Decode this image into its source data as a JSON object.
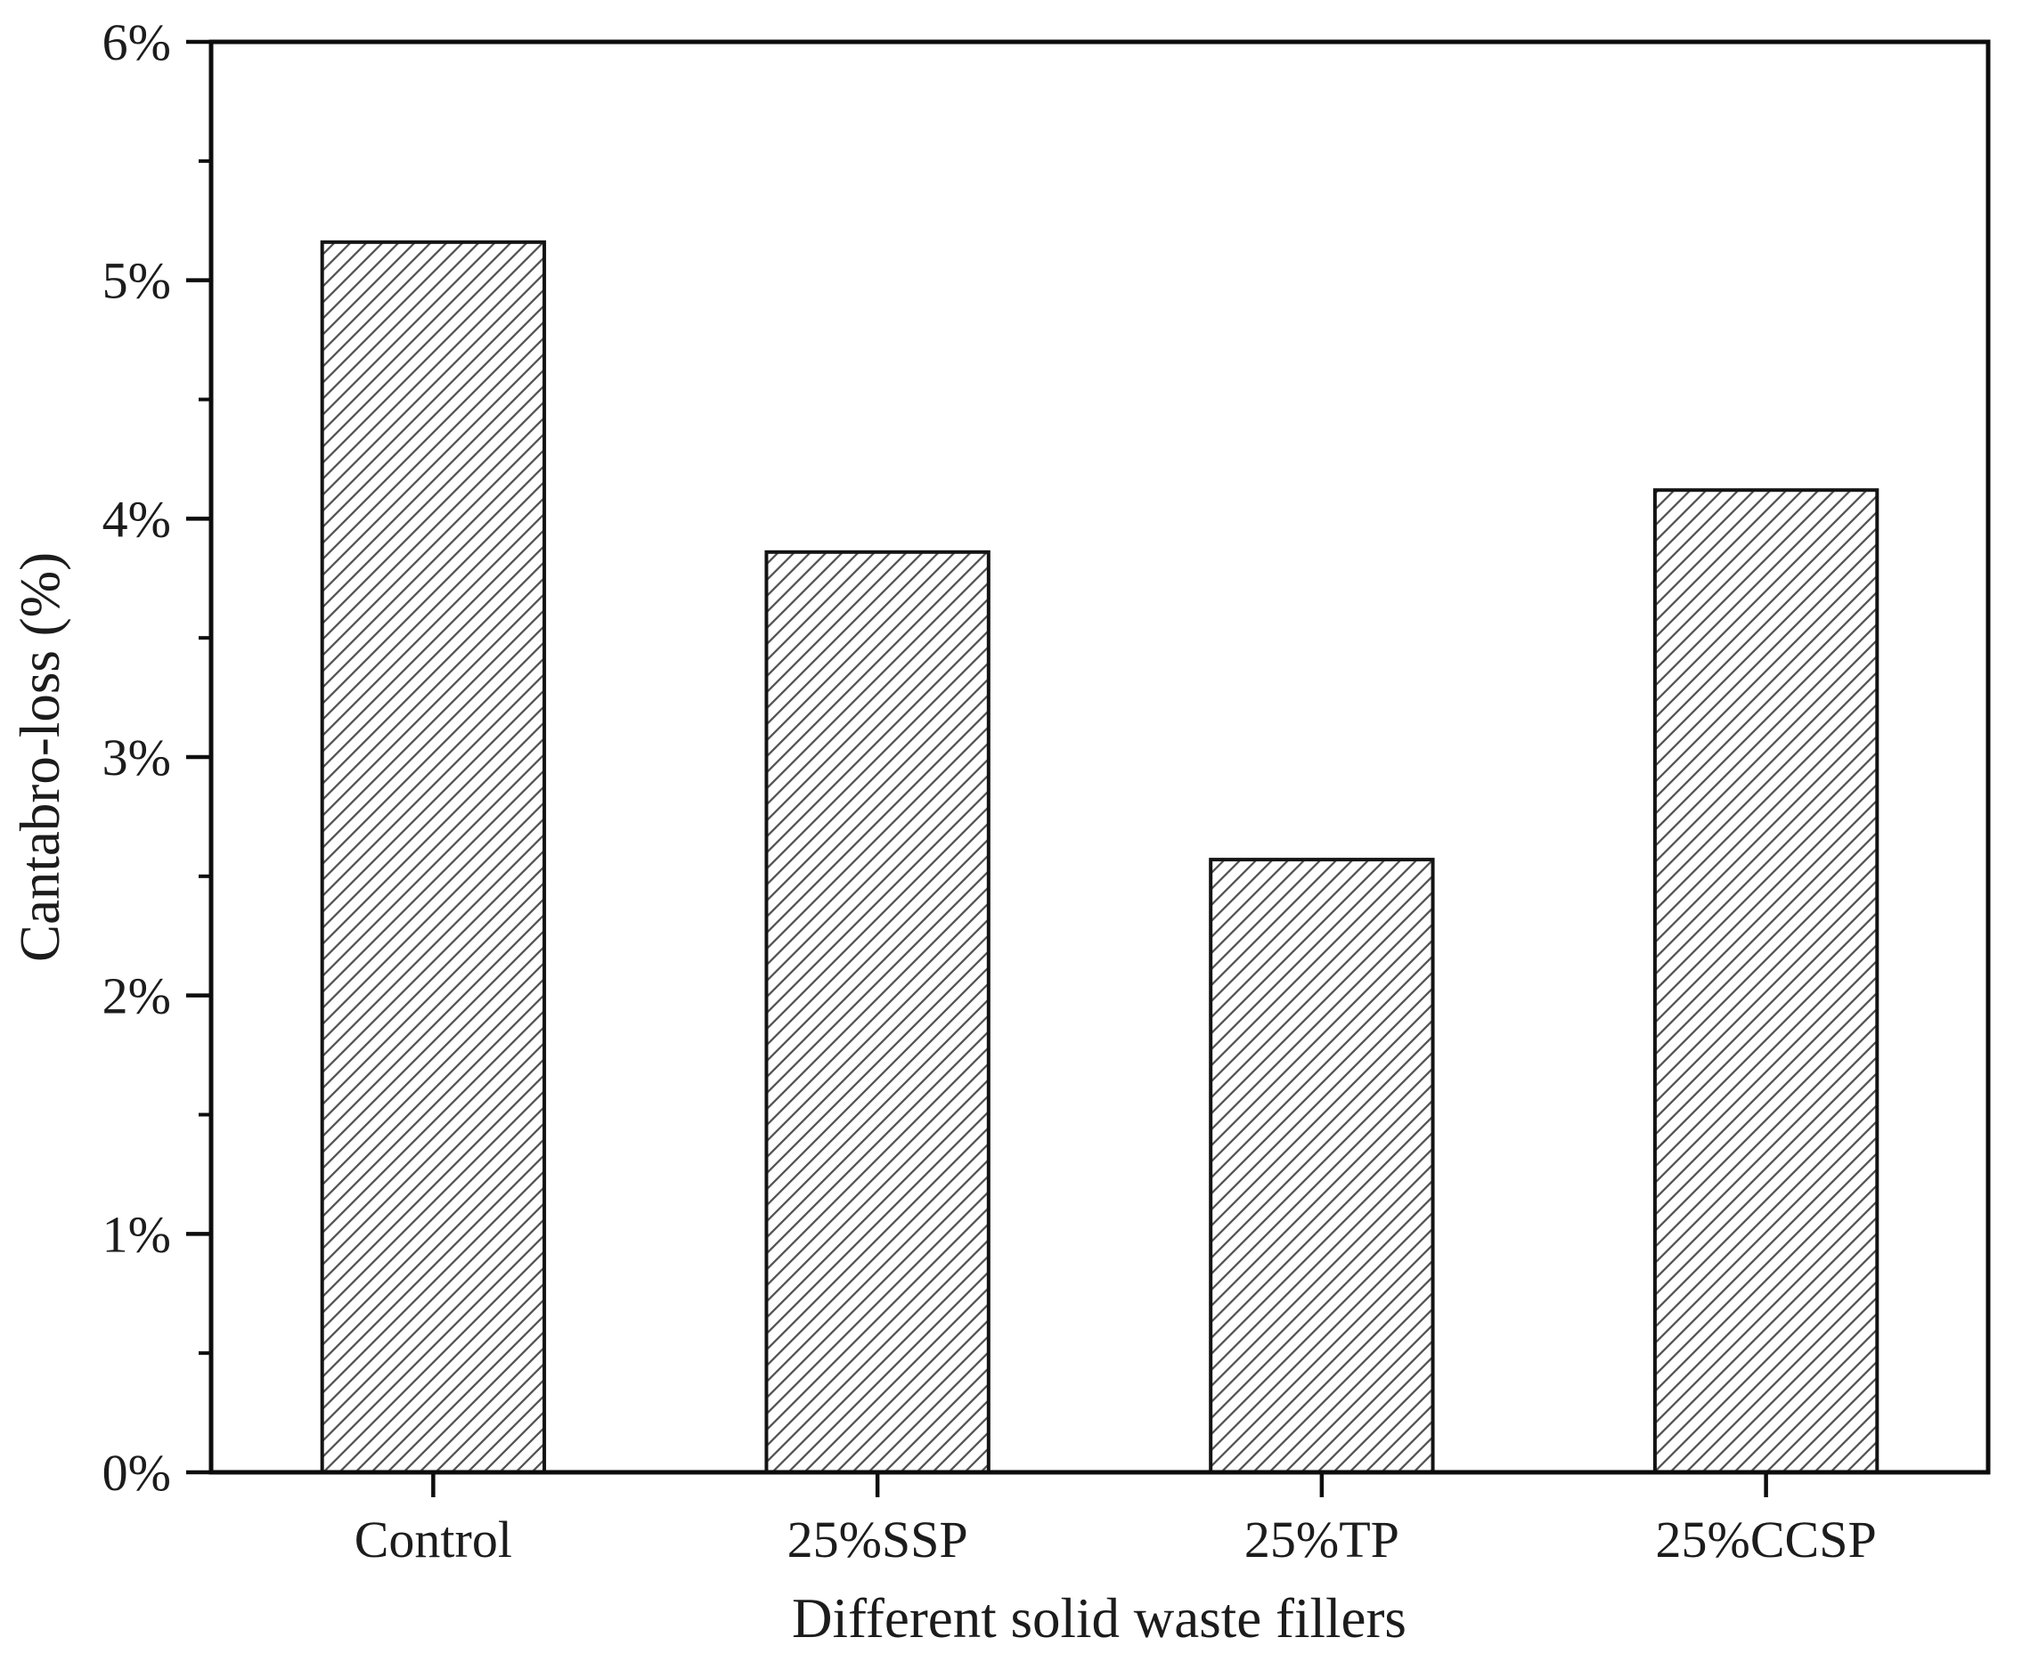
{
  "figure": {
    "background_color": "#ffffff",
    "axis_color": "#0d0d0d",
    "text_color": "#1c1c1c",
    "bar_fill_color": "#ffffff",
    "bar_edge_color": "#141414",
    "hatch_color": "#555555"
  },
  "chart_data": {
    "type": "bar",
    "title": "",
    "xlabel": "Different solid waste fillers",
    "ylabel": "Cantabro-loss (%)",
    "categories": [
      "Control",
      "25%SSP",
      "25%TP",
      "25%CCSP"
    ],
    "values": [
      5.16,
      3.86,
      2.57,
      4.12
    ],
    "value_unit": "%",
    "ylim": [
      0,
      6
    ],
    "y_major_step": 1,
    "y_minor_step": 0.5,
    "y_tick_labels": [
      "0%",
      "1%",
      "2%",
      "3%",
      "4%",
      "5%",
      "6%"
    ],
    "grid": false,
    "legend_position": "none",
    "bar_hatch": "forward-diagonal"
  }
}
